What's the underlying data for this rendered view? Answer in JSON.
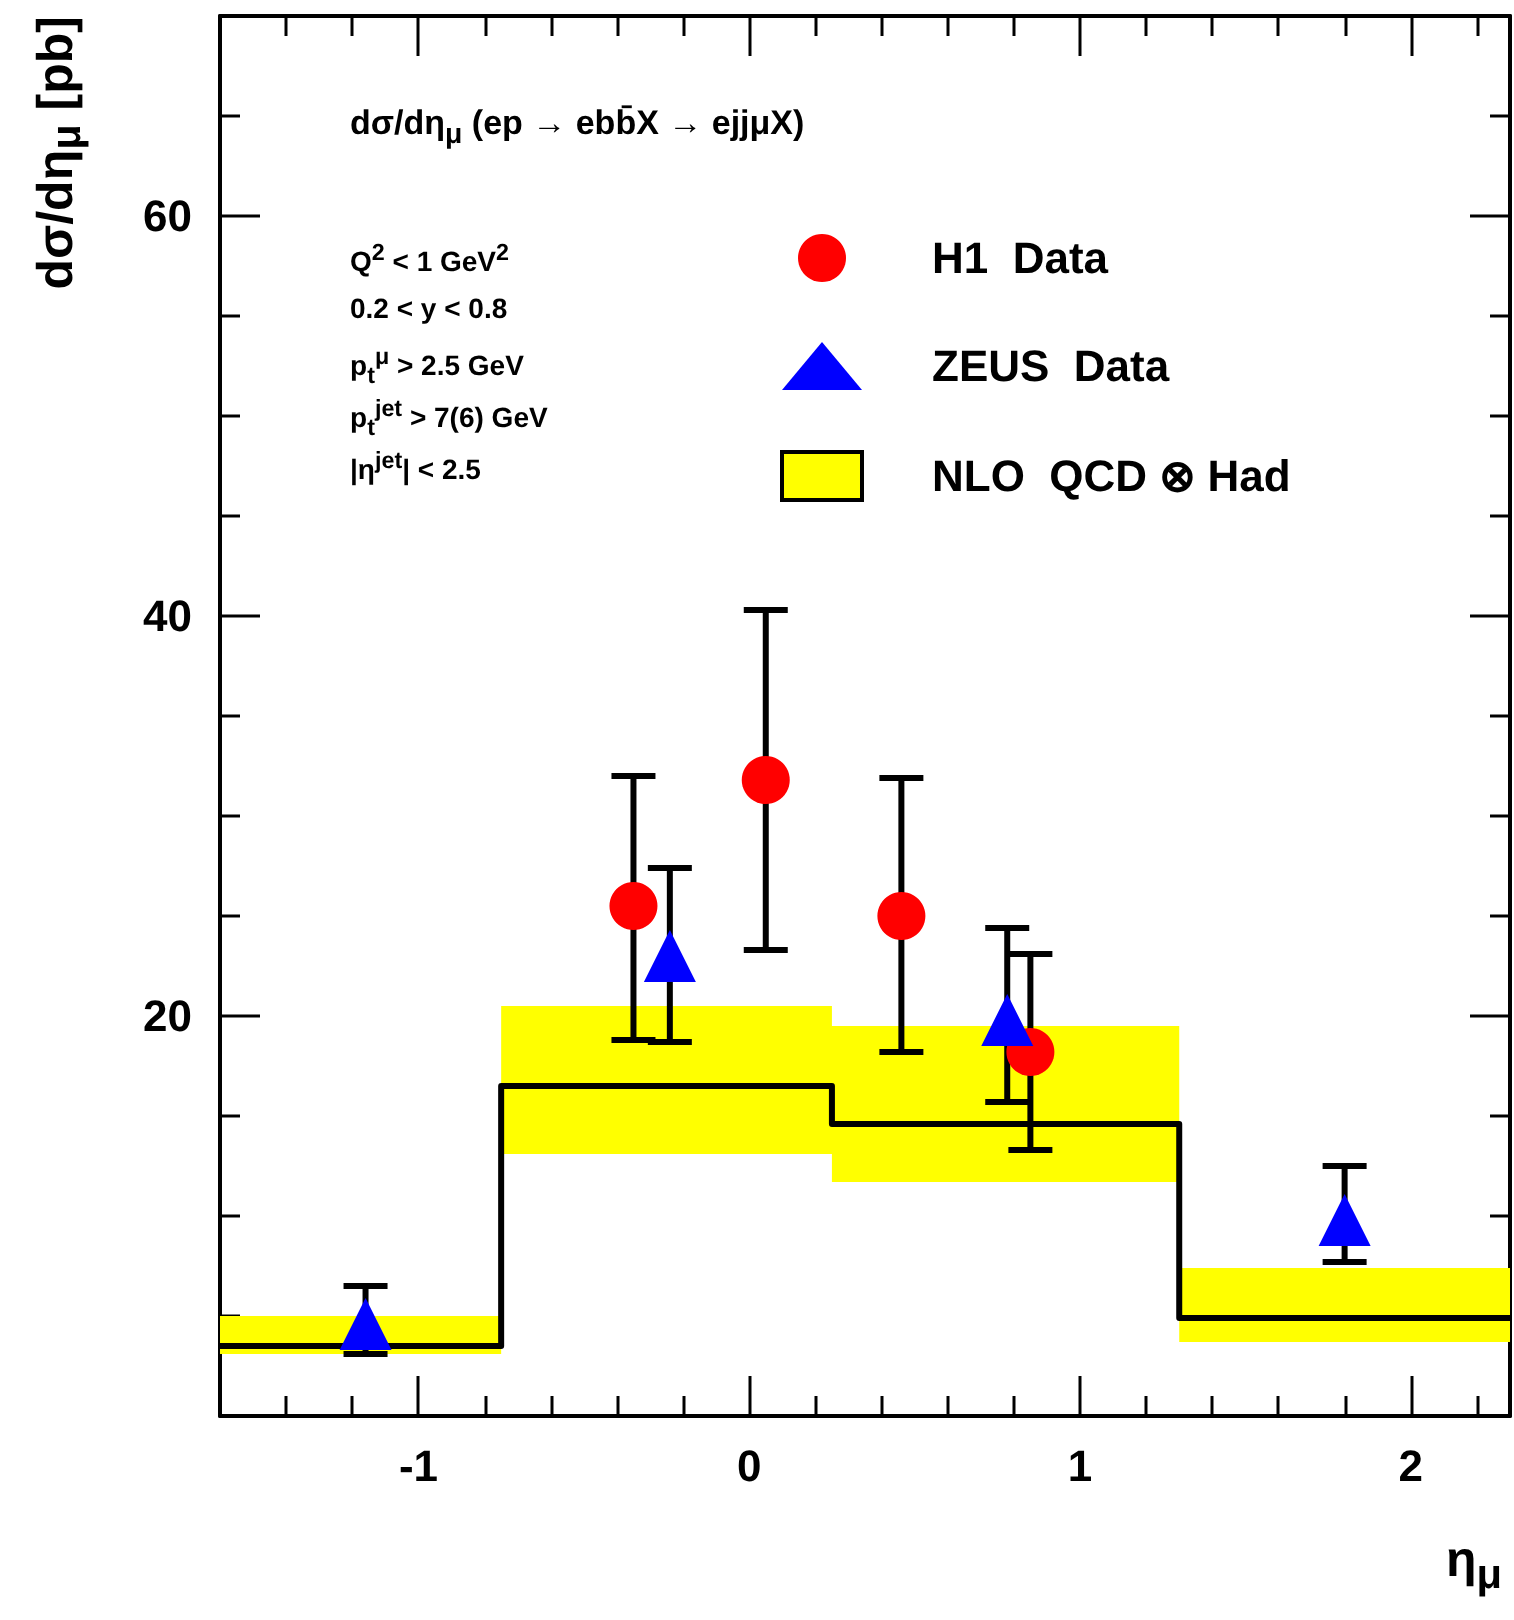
{
  "chart_data": {
    "type": "scatter",
    "ylabel": "dσ/dη$_{μ}$ [pb]",
    "xlabel": "η$_{μ}$",
    "annotations": [
      "dσ/dη$_{μ}$ (ep → ebb̄X → ejjμX)",
      "Q$^{2}$ < 1 GeV$^{2}$",
      "0.2 < y < 0.8",
      "p$_{t}$$^{μ}$ > 2.5 GeV",
      "p$_{t}$$^{jet}$ > 7(6) GeV",
      "|η$^{jet}$| < 2.5"
    ],
    "xlim": [
      -1.6,
      2.3
    ],
    "xticks": [
      {
        "value": -1.4,
        "label": null
      },
      {
        "value": -1.2,
        "label": null
      },
      -1,
      {
        "value": -0.8,
        "label": null
      },
      {
        "value": -0.6,
        "label": null
      },
      {
        "value": -0.4,
        "label": null
      },
      {
        "value": -0.2,
        "label": null
      },
      0,
      {
        "value": 0.2,
        "label": null
      },
      {
        "value": 0.4,
        "label": null
      },
      {
        "value": 0.6,
        "label": null
      },
      {
        "value": 0.8,
        "label": null
      },
      1,
      {
        "value": 1.2,
        "label": null
      },
      {
        "value": 1.4,
        "label": null
      },
      {
        "value": 1.6,
        "label": null
      },
      {
        "value": 1.8,
        "label": null
      },
      2,
      {
        "value": 2.2,
        "label": null
      }
    ],
    "ylim": [
      0,
      70
    ],
    "yticks": [
      {
        "value": 5,
        "label": null
      },
      {
        "value": 10,
        "label": null
      },
      {
        "value": 15,
        "label": null
      },
      20,
      {
        "value": 25,
        "label": null
      },
      {
        "value": 30,
        "label": null
      },
      {
        "value": 35,
        "label": null
      },
      40,
      {
        "value": 45,
        "label": null
      },
      {
        "value": 50,
        "label": null
      },
      {
        "value": 55,
        "label": null
      },
      60,
      {
        "value": 65,
        "label": null
      }
    ],
    "legend": "top right",
    "grid": false,
    "series": [
      {
        "name": "H1  Data",
        "marker": "circle",
        "color": "#ff0000",
        "x": [
          -0.35,
          0.05,
          0.46,
          0.85
        ],
        "values": [
          25.5,
          31.8,
          25.0,
          18.2
        ],
        "errors": [
          [
            18.8,
            32.0
          ],
          [
            23.3,
            40.3
          ],
          [
            18.2,
            31.9
          ],
          [
            13.3,
            23.1
          ]
        ]
      },
      {
        "name": "ZEUS  Data",
        "marker": "triangle",
        "color": "#0000ff",
        "x": [
          -1.16,
          -0.24,
          0.78,
          1.8
        ],
        "values": [
          4.6,
          23.0,
          19.8,
          9.8
        ],
        "errors": [
          [
            3.1,
            6.5
          ],
          [
            18.7,
            27.4
          ],
          [
            15.7,
            24.4
          ],
          [
            7.7,
            12.5
          ]
        ]
      },
      {
        "name": "NLO  QCD ⊗ Had",
        "type": "step",
        "marker": "none",
        "color": "#000000",
        "colors": [
          "#ffff00",
          "#ffff00",
          "#ffff00",
          "#ffff00",
          "#ffff00"
        ],
        "x": [
          -1.6,
          -0.75,
          0.25,
          1.3,
          2.3
        ],
        "values": [
          3.5,
          16.5,
          14.6,
          4.9,
          4.9
        ],
        "lower": [
          3.1,
          13.1,
          11.7,
          3.7,
          3.7
        ],
        "upper": [
          5.0,
          20.5,
          19.5,
          7.4,
          7.4
        ]
      }
    ]
  }
}
